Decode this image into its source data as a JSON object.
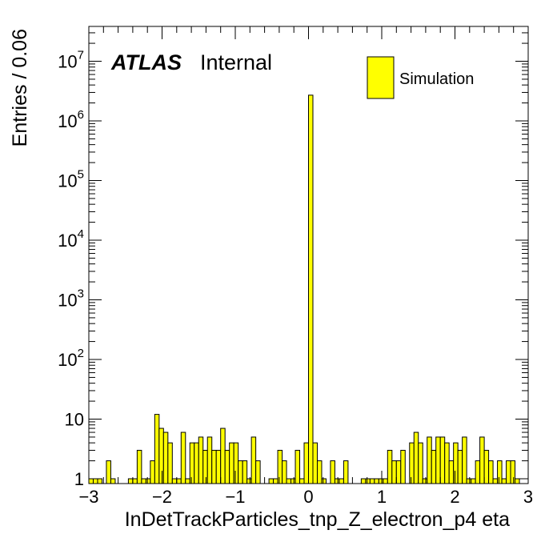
{
  "chart_data": {
    "type": "bar",
    "histogram": true,
    "xlabel": "InDetTrackParticles_tnp_Z_electron_p4 eta",
    "ylabel": "Entries / 0.06",
    "xlim": [
      -3,
      3
    ],
    "ylim": [
      1,
      40000000
    ],
    "yscale": "log",
    "bin_width": 0.06,
    "x_ticks": [
      "−3",
      "−2",
      "−1",
      "0",
      "1",
      "2",
      "3"
    ],
    "y_ticks": [
      {
        "base": "1",
        "exp": ""
      },
      {
        "base": "10",
        "exp": ""
      },
      {
        "base": "10",
        "exp": "2"
      },
      {
        "base": "10",
        "exp": "3"
      },
      {
        "base": "10",
        "exp": "4"
      },
      {
        "base": "10",
        "exp": "5"
      },
      {
        "base": "10",
        "exp": "6"
      },
      {
        "base": "10",
        "exp": "7"
      }
    ],
    "label_atlas": "ATLAS",
    "label_status": "Internal",
    "legend": [
      {
        "name": "Simulation",
        "color": "#ffff00"
      }
    ],
    "legend_position": "top-right",
    "fill_color": "#ffff00",
    "edge_color": "#000000",
    "bins": [
      {
        "x0": -3.0,
        "value": 1
      },
      {
        "x0": -2.94,
        "value": 1
      },
      {
        "x0": -2.88,
        "value": 1
      },
      {
        "x0": -2.76,
        "value": 2
      },
      {
        "x0": -2.7,
        "value": 1
      },
      {
        "x0": -2.46,
        "value": 1
      },
      {
        "x0": -2.4,
        "value": 1
      },
      {
        "x0": -2.34,
        "value": 3
      },
      {
        "x0": -2.28,
        "value": 1
      },
      {
        "x0": -2.22,
        "value": 1
      },
      {
        "x0": -2.16,
        "value": 2
      },
      {
        "x0": -2.1,
        "value": 12
      },
      {
        "x0": -2.04,
        "value": 7
      },
      {
        "x0": -1.98,
        "value": 6
      },
      {
        "x0": -1.92,
        "value": 4
      },
      {
        "x0": -1.86,
        "value": 1
      },
      {
        "x0": -1.8,
        "value": 1
      },
      {
        "x0": -1.74,
        "value": 6
      },
      {
        "x0": -1.68,
        "value": 1
      },
      {
        "x0": -1.62,
        "value": 4
      },
      {
        "x0": -1.56,
        "value": 4
      },
      {
        "x0": -1.5,
        "value": 5
      },
      {
        "x0": -1.44,
        "value": 3
      },
      {
        "x0": -1.38,
        "value": 5
      },
      {
        "x0": -1.32,
        "value": 3
      },
      {
        "x0": -1.26,
        "value": 3
      },
      {
        "x0": -1.2,
        "value": 7
      },
      {
        "x0": -1.14,
        "value": 3
      },
      {
        "x0": -1.08,
        "value": 4
      },
      {
        "x0": -1.02,
        "value": 4
      },
      {
        "x0": -0.96,
        "value": 2
      },
      {
        "x0": -0.9,
        "value": 2
      },
      {
        "x0": -0.84,
        "value": 1
      },
      {
        "x0": -0.78,
        "value": 5
      },
      {
        "x0": -0.72,
        "value": 2
      },
      {
        "x0": -0.54,
        "value": 1
      },
      {
        "x0": -0.48,
        "value": 1
      },
      {
        "x0": -0.42,
        "value": 3
      },
      {
        "x0": -0.36,
        "value": 2
      },
      {
        "x0": -0.3,
        "value": 1
      },
      {
        "x0": -0.24,
        "value": 1
      },
      {
        "x0": -0.18,
        "value": 3
      },
      {
        "x0": -0.12,
        "value": 1
      },
      {
        "x0": -0.06,
        "value": 4
      },
      {
        "x0": 0.0,
        "value": 2700000
      },
      {
        "x0": 0.06,
        "value": 4
      },
      {
        "x0": 0.12,
        "value": 2
      },
      {
        "x0": 0.18,
        "value": 1
      },
      {
        "x0": 0.3,
        "value": 2
      },
      {
        "x0": 0.36,
        "value": 1
      },
      {
        "x0": 0.42,
        "value": 1
      },
      {
        "x0": 0.48,
        "value": 2
      },
      {
        "x0": 0.72,
        "value": 1
      },
      {
        "x0": 0.78,
        "value": 1
      },
      {
        "x0": 0.84,
        "value": 1
      },
      {
        "x0": 0.9,
        "value": 1
      },
      {
        "x0": 0.96,
        "value": 1
      },
      {
        "x0": 1.02,
        "value": 1
      },
      {
        "x0": 1.08,
        "value": 3
      },
      {
        "x0": 1.14,
        "value": 2
      },
      {
        "x0": 1.2,
        "value": 2
      },
      {
        "x0": 1.26,
        "value": 3
      },
      {
        "x0": 1.38,
        "value": 4
      },
      {
        "x0": 1.44,
        "value": 6
      },
      {
        "x0": 1.5,
        "value": 4
      },
      {
        "x0": 1.56,
        "value": 1
      },
      {
        "x0": 1.62,
        "value": 5
      },
      {
        "x0": 1.68,
        "value": 3
      },
      {
        "x0": 1.74,
        "value": 5
      },
      {
        "x0": 1.8,
        "value": 5
      },
      {
        "x0": 1.86,
        "value": 4
      },
      {
        "x0": 1.92,
        "value": 2
      },
      {
        "x0": 1.98,
        "value": 4
      },
      {
        "x0": 2.04,
        "value": 3
      },
      {
        "x0": 2.1,
        "value": 5
      },
      {
        "x0": 2.16,
        "value": 1
      },
      {
        "x0": 2.22,
        "value": 1
      },
      {
        "x0": 2.28,
        "value": 2
      },
      {
        "x0": 2.34,
        "value": 5
      },
      {
        "x0": 2.4,
        "value": 3
      },
      {
        "x0": 2.46,
        "value": 2
      },
      {
        "x0": 2.52,
        "value": 1
      },
      {
        "x0": 2.58,
        "value": 2
      },
      {
        "x0": 2.64,
        "value": 1
      },
      {
        "x0": 2.7,
        "value": 2
      },
      {
        "x0": 2.76,
        "value": 2
      },
      {
        "x0": 2.82,
        "value": 1
      }
    ]
  }
}
